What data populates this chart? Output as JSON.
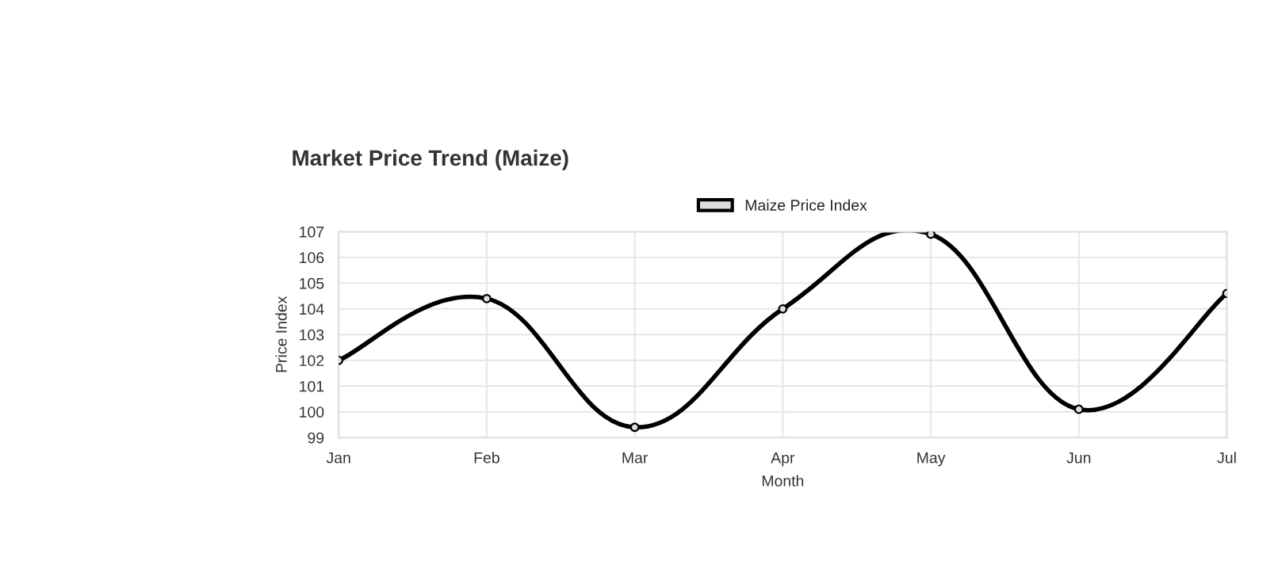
{
  "chart_data": {
    "type": "line",
    "title": "Market Price Trend (Maize)",
    "xlabel": "Month",
    "ylabel": "Price Index",
    "categories": [
      "Jan",
      "Feb",
      "Mar",
      "Apr",
      "May",
      "Jun",
      "Jul"
    ],
    "series": [
      {
        "name": "Maize Price Index",
        "color": "#000000",
        "values": [
          102.0,
          104.4,
          99.4,
          104.0,
          106.9,
          100.1,
          104.6
        ]
      }
    ],
    "ylim": [
      99,
      107
    ],
    "yticks": [
      99,
      100,
      101,
      102,
      103,
      104,
      105,
      106,
      107
    ],
    "grid": true,
    "legend": "top",
    "marker": "circle",
    "line_style": "solid"
  }
}
